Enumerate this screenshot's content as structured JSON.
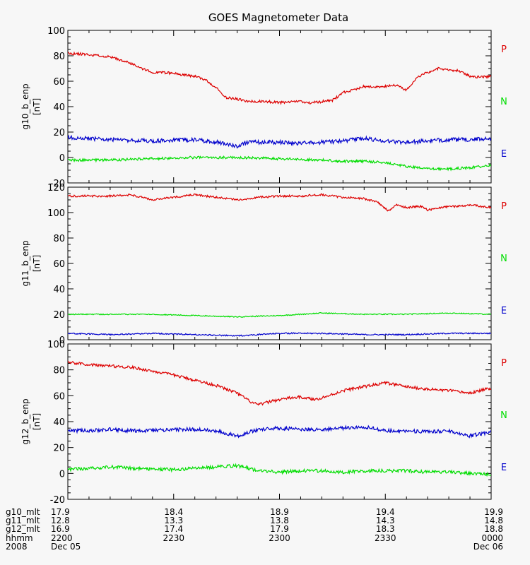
{
  "chart_data": {
    "type": "line",
    "title": "GOES Magnetometer Data",
    "xlim": [
      0,
      120
    ],
    "footer": {
      "columns": [
        {
          "label": "g10_mlt",
          "values": [
            "17.9",
            "18.4",
            "18.9",
            "19.4",
            "19.9"
          ]
        },
        {
          "label": "g11_mlt",
          "values": [
            "12.8",
            "13.3",
            "13.8",
            "14.3",
            "14.8"
          ]
        },
        {
          "label": "g12_mlt",
          "values": [
            "16.9",
            "17.4",
            "17.9",
            "18.3",
            "18.8"
          ]
        },
        {
          "label": "hhmm",
          "values": [
            "2200",
            "2230",
            "2300",
            "2330",
            "0000"
          ]
        },
        {
          "label": "2008",
          "values": [
            "Dec 05",
            "",
            "",
            "",
            "Dec 06"
          ]
        }
      ],
      "tick_minutes": [
        0,
        30,
        60,
        90,
        120
      ]
    },
    "panels": [
      {
        "ylabel": "g10_b_enp",
        "unit": "[nT]",
        "ylim": [
          -20,
          100
        ],
        "yticks": [
          "-20",
          "0",
          "20",
          "40",
          "60",
          "80",
          "100"
        ],
        "legend": [
          {
            "name": "P",
            "color": "#dd0000"
          },
          {
            "name": "N",
            "color": "#00dd00"
          },
          {
            "name": "E",
            "color": "#0000cc"
          }
        ],
        "series": [
          {
            "name": "P",
            "color": "#dd0000",
            "x": [
              0,
              6,
              12,
              18,
              21,
              24,
              27,
              30,
              33,
              36,
              39,
              42,
              45,
              48,
              51,
              54,
              57,
              60,
              63,
              66,
              69,
              72,
              75,
              78,
              81,
              84,
              87,
              90,
              93,
              96,
              99,
              102,
              105,
              108,
              111,
              114,
              117,
              120
            ],
            "y": [
              82,
              81,
              79,
              74,
              70,
              67,
              67,
              66,
              65,
              64,
              61,
              55,
              47,
              46,
              44,
              44,
              44,
              43,
              44,
              44,
              43,
              44,
              45,
              51,
              53,
              56,
              55,
              56,
              57,
              53,
              63,
              67,
              70,
              69,
              68,
              64,
              63,
              64
            ],
            "noise": 1.0,
            "seed": 11
          },
          {
            "name": "E",
            "color": "#0000cc",
            "x": [
              0,
              12,
              24,
              36,
              45,
              48,
              51,
              60,
              66,
              72,
              78,
              84,
              90,
              96,
              102,
              108,
              114,
              120
            ],
            "y": [
              16,
              14,
              13,
              14,
              11,
              9,
              12,
              12,
              11,
              12,
              13,
              15,
              13,
              12,
              13,
              14,
              14,
              15
            ],
            "noise": 1.6,
            "seed": 12
          },
          {
            "name": "N",
            "color": "#00dd00",
            "x": [
              0,
              12,
              24,
              36,
              48,
              60,
              72,
              78,
              84,
              90,
              96,
              102,
              108,
              114,
              120
            ],
            "y": [
              -2,
              -2,
              -1,
              0,
              0,
              -1,
              -2,
              -3,
              -3,
              -4,
              -7,
              -9,
              -9,
              -8,
              -6
            ],
            "noise": 1.0,
            "seed": 13
          }
        ]
      },
      {
        "ylabel": "g11_b_enp",
        "unit": "[nT]",
        "ylim": [
          0,
          120
        ],
        "yticks": [
          "0",
          "20",
          "40",
          "60",
          "80",
          "100",
          "120"
        ],
        "legend": [
          {
            "name": "P",
            "color": "#dd0000"
          },
          {
            "name": "N",
            "color": "#00dd00"
          },
          {
            "name": "E",
            "color": "#0000cc"
          }
        ],
        "series": [
          {
            "name": "P",
            "color": "#dd0000",
            "x": [
              0,
              12,
              18,
              24,
              30,
              36,
              42,
              48,
              54,
              60,
              66,
              72,
              78,
              84,
              88,
              90,
              91,
              93,
              96,
              100,
              102,
              106,
              110,
              114,
              120
            ],
            "y": [
              113,
              113,
              114,
              110,
              112,
              114,
              112,
              110,
              112,
              113,
              113,
              114,
              112,
              111,
              108,
              103,
              101,
              106,
              104,
              105,
              102,
              104,
              105,
              106,
              104
            ],
            "noise": 0.8,
            "seed": 21
          },
          {
            "name": "N",
            "color": "#00dd00",
            "x": [
              0,
              12,
              24,
              36,
              48,
              60,
              72,
              84,
              96,
              108,
              120
            ],
            "y": [
              20,
              20,
              20,
              19,
              18,
              19,
              21,
              20,
              20,
              21,
              20
            ],
            "noise": 0.4,
            "seed": 22
          },
          {
            "name": "E",
            "color": "#0000cc",
            "x": [
              0,
              12,
              24,
              36,
              48,
              60,
              72,
              84,
              96,
              108,
              120
            ],
            "y": [
              5,
              4,
              5,
              4,
              3,
              5,
              5,
              4,
              4,
              5,
              5
            ],
            "noise": 0.5,
            "seed": 23
          }
        ]
      },
      {
        "ylabel": "g12_b_enp",
        "unit": "[nT]",
        "ylim": [
          -20,
          100
        ],
        "yticks": [
          "-20",
          "0",
          "20",
          "40",
          "60",
          "80",
          "100"
        ],
        "legend": [
          {
            "name": "P",
            "color": "#dd0000"
          },
          {
            "name": "N",
            "color": "#00dd00"
          },
          {
            "name": "E",
            "color": "#0000cc"
          }
        ],
        "series": [
          {
            "name": "P",
            "color": "#dd0000",
            "x": [
              0,
              6,
              12,
              18,
              24,
              30,
              36,
              42,
              48,
              52,
              54,
              58,
              62,
              66,
              70,
              74,
              78,
              84,
              90,
              96,
              102,
              108,
              114,
              120
            ],
            "y": [
              86,
              84,
              83,
              82,
              79,
              76,
              72,
              68,
              62,
              55,
              53,
              56,
              58,
              59,
              57,
              60,
              64,
              67,
              70,
              67,
              65,
              64,
              62,
              66
            ],
            "noise": 1.1,
            "seed": 31
          },
          {
            "name": "E",
            "color": "#0000cc",
            "x": [
              0,
              6,
              12,
              18,
              24,
              30,
              36,
              42,
              48,
              54,
              60,
              66,
              72,
              78,
              84,
              90,
              96,
              102,
              108,
              114,
              120
            ],
            "y": [
              33,
              33,
              34,
              33,
              33,
              34,
              34,
              33,
              29,
              34,
              35,
              34,
              34,
              35,
              36,
              33,
              33,
              32,
              33,
              29,
              32
            ],
            "noise": 1.4,
            "seed": 32
          },
          {
            "name": "N",
            "color": "#00dd00",
            "x": [
              0,
              6,
              12,
              18,
              24,
              30,
              36,
              42,
              48,
              54,
              60,
              66,
              72,
              78,
              84,
              90,
              96,
              102,
              108,
              114,
              120
            ],
            "y": [
              3,
              4,
              5,
              4,
              3,
              3,
              4,
              5,
              6,
              2,
              1,
              2,
              2,
              1,
              2,
              2,
              2,
              1,
              1,
              0,
              -1
            ],
            "noise": 1.3,
            "seed": 33
          }
        ]
      }
    ]
  }
}
